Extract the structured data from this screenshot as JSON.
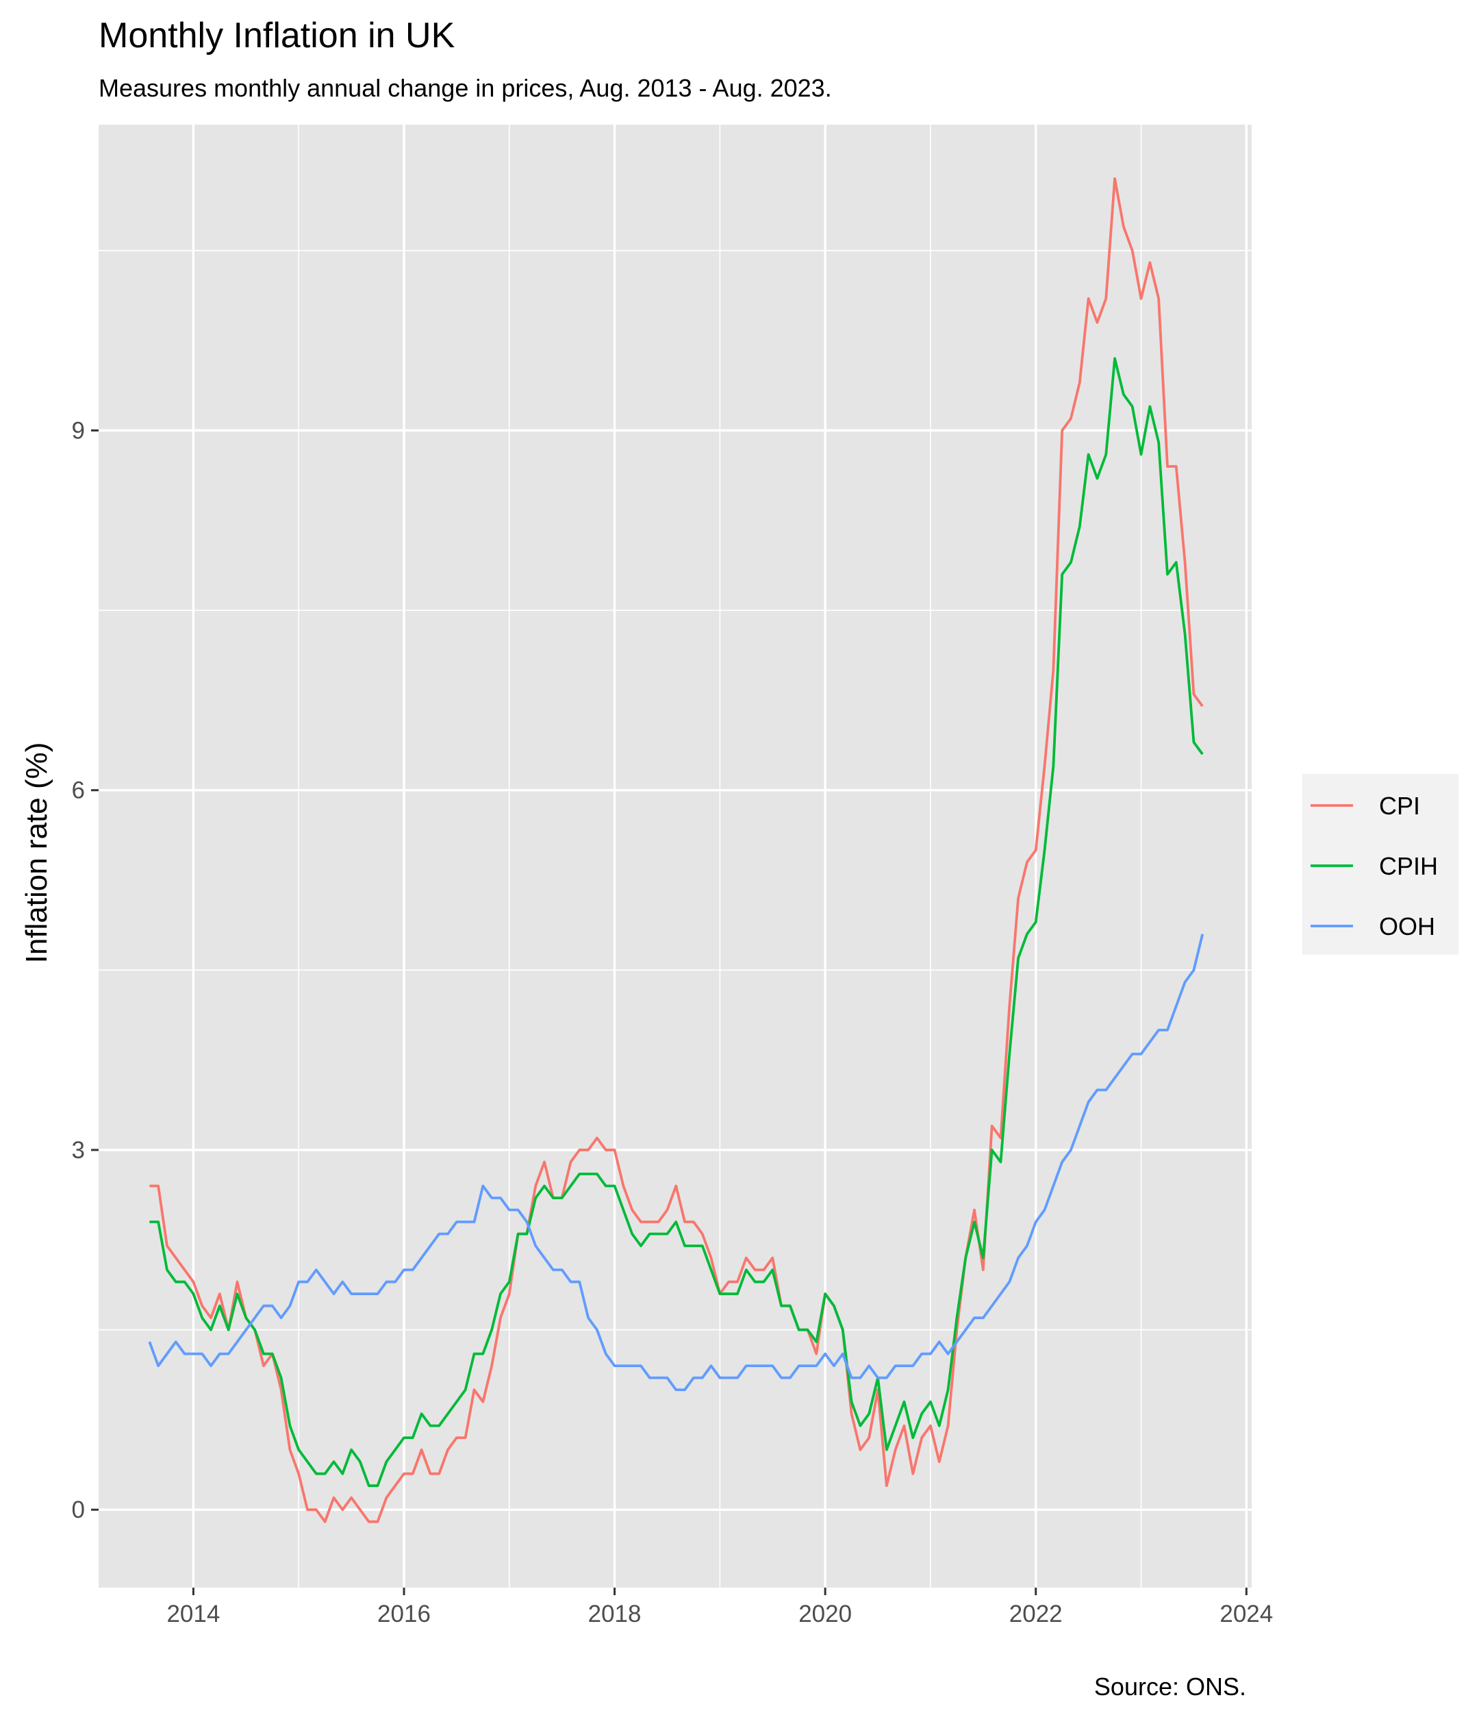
{
  "colors": {
    "panel": "#e5e5e5",
    "grid": "#ffffff",
    "CPI": "#F8766D",
    "CPIH": "#00BA38",
    "OOH": "#619CFF"
  },
  "chart_data": {
    "type": "line",
    "title": "Monthly Inflation in UK",
    "subtitle": "Measures monthly annual change in prices, Aug. 2013 - Aug. 2023.",
    "caption": "Source: ONS.",
    "xlabel": "",
    "ylabel": "Inflation rate (%)",
    "x_start": "2013-08",
    "x_end": "2023-08",
    "xlim": [
      2013.1,
      2024.05
    ],
    "ylim": [
      -0.65,
      11.55
    ],
    "x_ticks": [
      "2014",
      "2016",
      "2018",
      "2020",
      "2022",
      "2024"
    ],
    "y_ticks": [
      "0",
      "3",
      "6",
      "9"
    ],
    "grid": true,
    "legend_position": "right",
    "series": [
      {
        "name": "CPI",
        "values": [
          2.7,
          2.7,
          2.2,
          2.1,
          2.0,
          1.9,
          1.7,
          1.6,
          1.8,
          1.5,
          1.9,
          1.6,
          1.5,
          1.2,
          1.3,
          1.0,
          0.5,
          0.3,
          0.0,
          0.0,
          -0.1,
          0.1,
          0.0,
          0.1,
          0.0,
          -0.1,
          -0.1,
          0.1,
          0.2,
          0.3,
          0.3,
          0.5,
          0.3,
          0.3,
          0.5,
          0.6,
          0.6,
          1.0,
          0.9,
          1.2,
          1.6,
          1.8,
          2.3,
          2.3,
          2.7,
          2.9,
          2.6,
          2.6,
          2.9,
          3.0,
          3.0,
          3.1,
          3.0,
          3.0,
          2.7,
          2.5,
          2.4,
          2.4,
          2.4,
          2.5,
          2.7,
          2.4,
          2.4,
          2.3,
          2.1,
          1.8,
          1.9,
          1.9,
          2.1,
          2.0,
          2.0,
          2.1,
          1.7,
          1.7,
          1.5,
          1.5,
          1.3,
          1.8,
          1.7,
          1.5,
          0.8,
          0.5,
          0.6,
          1.0,
          0.2,
          0.5,
          0.7,
          0.3,
          0.6,
          0.7,
          0.4,
          0.7,
          1.5,
          2.1,
          2.5,
          2.0,
          3.2,
          3.1,
          4.2,
          5.1,
          5.4,
          5.5,
          6.2,
          7.0,
          9.0,
          9.1,
          9.4,
          10.1,
          9.9,
          10.1,
          11.1,
          10.7,
          10.5,
          10.1,
          10.4,
          10.1,
          8.7,
          8.7,
          7.9,
          6.8,
          6.7
        ]
      },
      {
        "name": "CPIH",
        "values": [
          2.4,
          2.4,
          2.0,
          1.9,
          1.9,
          1.8,
          1.6,
          1.5,
          1.7,
          1.5,
          1.8,
          1.6,
          1.5,
          1.3,
          1.3,
          1.1,
          0.7,
          0.5,
          0.4,
          0.3,
          0.3,
          0.4,
          0.3,
          0.5,
          0.4,
          0.2,
          0.2,
          0.4,
          0.5,
          0.6,
          0.6,
          0.8,
          0.7,
          0.7,
          0.8,
          0.9,
          1.0,
          1.3,
          1.3,
          1.5,
          1.8,
          1.9,
          2.3,
          2.3,
          2.6,
          2.7,
          2.6,
          2.6,
          2.7,
          2.8,
          2.8,
          2.8,
          2.7,
          2.7,
          2.5,
          2.3,
          2.2,
          2.3,
          2.3,
          2.3,
          2.4,
          2.2,
          2.2,
          2.2,
          2.0,
          1.8,
          1.8,
          1.8,
          2.0,
          1.9,
          1.9,
          2.0,
          1.7,
          1.7,
          1.5,
          1.5,
          1.4,
          1.8,
          1.7,
          1.5,
          0.9,
          0.7,
          0.8,
          1.1,
          0.5,
          0.7,
          0.9,
          0.6,
          0.8,
          0.9,
          0.7,
          1.0,
          1.6,
          2.1,
          2.4,
          2.1,
          3.0,
          2.9,
          3.8,
          4.6,
          4.8,
          4.9,
          5.5,
          6.2,
          7.8,
          7.9,
          8.2,
          8.8,
          8.6,
          8.8,
          9.6,
          9.3,
          9.2,
          8.8,
          9.2,
          8.9,
          7.8,
          7.9,
          7.3,
          6.4,
          6.3
        ]
      },
      {
        "name": "OOH",
        "values": [
          1.4,
          1.2,
          1.3,
          1.4,
          1.3,
          1.3,
          1.3,
          1.2,
          1.3,
          1.3,
          1.4,
          1.5,
          1.6,
          1.7,
          1.7,
          1.6,
          1.7,
          1.9,
          1.9,
          2.0,
          1.9,
          1.8,
          1.9,
          1.8,
          1.8,
          1.8,
          1.8,
          1.9,
          1.9,
          2.0,
          2.0,
          2.1,
          2.2,
          2.3,
          2.3,
          2.4,
          2.4,
          2.4,
          2.7,
          2.6,
          2.6,
          2.5,
          2.5,
          2.4,
          2.2,
          2.1,
          2.0,
          2.0,
          1.9,
          1.9,
          1.6,
          1.5,
          1.3,
          1.2,
          1.2,
          1.2,
          1.2,
          1.1,
          1.1,
          1.1,
          1.0,
          1.0,
          1.1,
          1.1,
          1.2,
          1.1,
          1.1,
          1.1,
          1.2,
          1.2,
          1.2,
          1.2,
          1.1,
          1.1,
          1.2,
          1.2,
          1.2,
          1.3,
          1.2,
          1.3,
          1.1,
          1.1,
          1.2,
          1.1,
          1.1,
          1.2,
          1.2,
          1.2,
          1.3,
          1.3,
          1.4,
          1.3,
          1.4,
          1.5,
          1.6,
          1.6,
          1.7,
          1.8,
          1.9,
          2.1,
          2.2,
          2.4,
          2.5,
          2.7,
          2.9,
          3.0,
          3.2,
          3.4,
          3.5,
          3.5,
          3.6,
          3.7,
          3.8,
          3.8,
          3.9,
          4.0,
          4.0,
          4.2,
          4.4,
          4.5,
          4.8
        ]
      }
    ]
  }
}
